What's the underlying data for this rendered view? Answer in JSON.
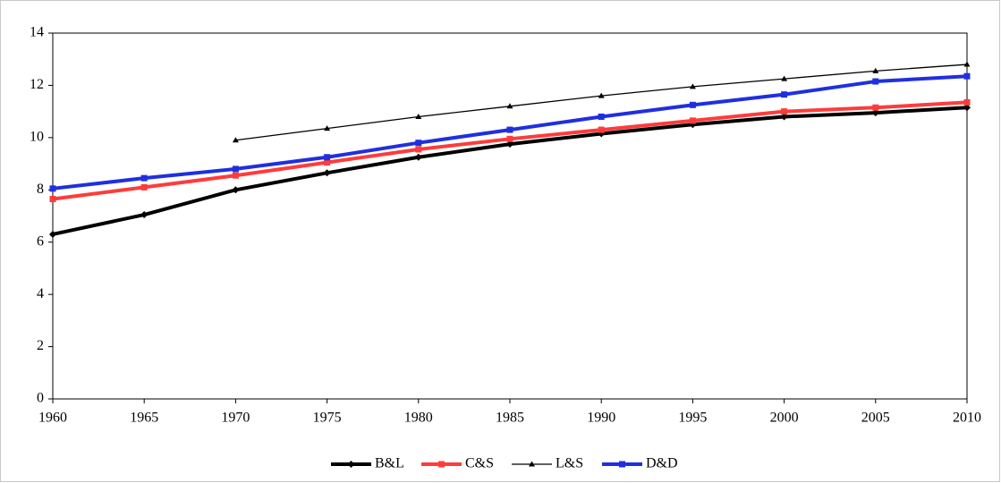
{
  "chart_data": {
    "type": "line",
    "x": [
      1960,
      1965,
      1970,
      1975,
      1980,
      1985,
      1990,
      1995,
      2000,
      2005,
      2010
    ],
    "series": [
      {
        "name": "B&L",
        "color": "#000000",
        "line_width": 4,
        "marker": "diamond",
        "values": [
          6.3,
          7.05,
          8.0,
          8.65,
          9.25,
          9.75,
          10.15,
          10.5,
          10.8,
          10.95,
          11.15
        ]
      },
      {
        "name": "C&S",
        "color": "#ff3b3b",
        "line_width": 4,
        "marker": "square",
        "values": [
          7.65,
          8.1,
          8.55,
          9.05,
          9.55,
          9.95,
          10.3,
          10.65,
          11.0,
          11.15,
          11.35
        ]
      },
      {
        "name": "L&S",
        "color": "#000000",
        "line_width": 1.3,
        "marker": "triangle",
        "values": [
          null,
          null,
          9.9,
          10.35,
          10.8,
          11.2,
          11.6,
          11.95,
          12.25,
          12.55,
          12.8
        ]
      },
      {
        "name": "D&D",
        "color": "#1f2fe0",
        "line_width": 4,
        "marker": "square",
        "values": [
          8.05,
          8.45,
          8.8,
          9.25,
          9.8,
          10.3,
          10.8,
          11.25,
          11.65,
          12.15,
          12.35
        ]
      }
    ],
    "xlim": [
      1960,
      2010
    ],
    "xticks": [
      1960,
      1965,
      1970,
      1975,
      1980,
      1985,
      1990,
      1995,
      2000,
      2005,
      2010
    ],
    "ylim": [
      0,
      14
    ],
    "yticks": [
      0,
      2,
      4,
      6,
      8,
      10,
      12,
      14
    ],
    "legend": "bottom"
  }
}
